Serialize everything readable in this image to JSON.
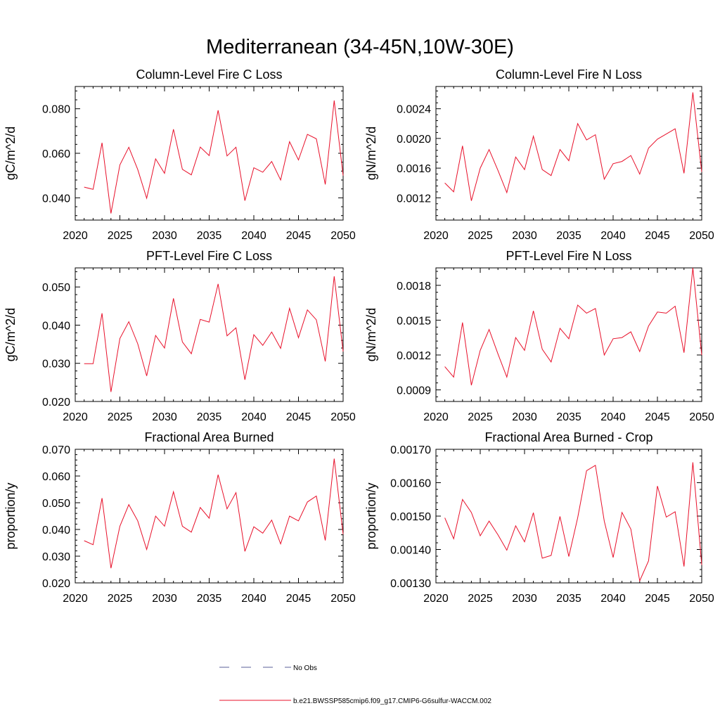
{
  "figure": {
    "title": "Mediterranean (34-45N,10W-30E)"
  },
  "colors": {
    "series": "#e8102a",
    "obs": "#5a5f9a",
    "axis": "#000000"
  },
  "legend": {
    "obs_label": "No Obs",
    "run_label": "b.e21.BWSSP585cmip6.f09_g17.CMIP6-G6sulfur-WACCM.002"
  },
  "chart_data": [
    {
      "type": "line",
      "title": "Column-Level Fire C Loss",
      "ylabel": "gC/m^2/d",
      "xlim": [
        2020,
        2050
      ],
      "ylim": [
        0.03,
        0.09
      ],
      "xticks": [
        2020,
        2025,
        2030,
        2035,
        2040,
        2045,
        2050
      ],
      "xtick_labels": [
        "2020",
        "2025",
        "2030",
        "2035",
        "2040",
        "2045",
        "2050"
      ],
      "yticks": [
        0.04,
        0.06,
        0.08
      ],
      "ytick_labels": [
        "0.040",
        "0.060",
        "0.080"
      ],
      "x": [
        2021,
        2022,
        2023,
        2024,
        2025,
        2026,
        2027,
        2028,
        2029,
        2030,
        2031,
        2032,
        2033,
        2034,
        2035,
        2036,
        2037,
        2038,
        2039,
        2040,
        2041,
        2042,
        2043,
        2044,
        2045,
        2046,
        2047,
        2048,
        2049,
        2050
      ],
      "series": [
        {
          "values": [
            0.0448,
            0.0438,
            0.0647,
            0.033,
            0.0548,
            0.0627,
            0.0527,
            0.0398,
            0.0575,
            0.051,
            0.0708,
            0.0528,
            0.0503,
            0.0628,
            0.059,
            0.0793,
            0.0588,
            0.0627,
            0.0387,
            0.0535,
            0.0515,
            0.0563,
            0.048,
            0.0652,
            0.057,
            0.0685,
            0.0665,
            0.046,
            0.0837,
            0.05
          ]
        }
      ]
    },
    {
      "type": "line",
      "title": "Column-Level Fire N Loss",
      "ylabel": "gN/m^2/d",
      "xlim": [
        2020,
        2050
      ],
      "ylim": [
        0.0009,
        0.0027
      ],
      "xticks": [
        2020,
        2025,
        2030,
        2035,
        2040,
        2045,
        2050
      ],
      "xtick_labels": [
        "2020",
        "2025",
        "2030",
        "2035",
        "2040",
        "2045",
        "2050"
      ],
      "yticks": [
        0.0012,
        0.0016,
        0.002,
        0.0024
      ],
      "ytick_labels": [
        "0.0012",
        "0.0016",
        "0.0020",
        "0.0024"
      ],
      "x": [
        2021,
        2022,
        2023,
        2024,
        2025,
        2026,
        2027,
        2028,
        2029,
        2030,
        2031,
        2032,
        2033,
        2034,
        2035,
        2036,
        2037,
        2038,
        2039,
        2040,
        2041,
        2042,
        2043,
        2044,
        2045,
        2046,
        2047,
        2048,
        2049,
        2050
      ],
      "series": [
        {
          "values": [
            0.0014,
            0.00128,
            0.0019,
            0.00116,
            0.0016,
            0.00185,
            0.00157,
            0.00127,
            0.00175,
            0.00158,
            0.00203,
            0.00158,
            0.0015,
            0.00185,
            0.0017,
            0.0022,
            0.00198,
            0.00205,
            0.00145,
            0.00166,
            0.00169,
            0.00177,
            0.00152,
            0.00187,
            0.00199,
            0.00206,
            0.00213,
            0.00153,
            0.00262,
            0.00155
          ]
        }
      ]
    },
    {
      "type": "line",
      "title": "PFT-Level Fire C Loss",
      "ylabel": "gC/m^2/d",
      "xlim": [
        2020,
        2050
      ],
      "ylim": [
        0.02,
        0.055
      ],
      "xticks": [
        2020,
        2025,
        2030,
        2035,
        2040,
        2045,
        2050
      ],
      "xtick_labels": [
        "2020",
        "2025",
        "2030",
        "2035",
        "2040",
        "2045",
        "2050"
      ],
      "yticks": [
        0.02,
        0.03,
        0.04,
        0.05
      ],
      "ytick_labels": [
        "0.020",
        "0.030",
        "0.040",
        "0.050"
      ],
      "x": [
        2021,
        2022,
        2023,
        2024,
        2025,
        2026,
        2027,
        2028,
        2029,
        2030,
        2031,
        2032,
        2033,
        2034,
        2035,
        2036,
        2037,
        2038,
        2039,
        2040,
        2041,
        2042,
        2043,
        2044,
        2045,
        2046,
        2047,
        2048,
        2049,
        2050
      ],
      "series": [
        {
          "values": [
            0.0299,
            0.0299,
            0.0431,
            0.0225,
            0.0365,
            0.0409,
            0.0351,
            0.0267,
            0.0373,
            0.034,
            0.047,
            0.0356,
            0.0325,
            0.0415,
            0.0408,
            0.0508,
            0.0372,
            0.0393,
            0.0257,
            0.0375,
            0.0347,
            0.0382,
            0.0339,
            0.0444,
            0.0367,
            0.044,
            0.0414,
            0.0305,
            0.0528,
            0.0331
          ]
        }
      ]
    },
    {
      "type": "line",
      "title": "PFT-Level Fire N Loss",
      "ylabel": "gN/m^2/d",
      "xlim": [
        2020,
        2050
      ],
      "ylim": [
        0.0008,
        0.00195
      ],
      "xticks": [
        2020,
        2025,
        2030,
        2035,
        2040,
        2045,
        2050
      ],
      "xtick_labels": [
        "2020",
        "2025",
        "2030",
        "2035",
        "2040",
        "2045",
        "2050"
      ],
      "yticks": [
        0.0009,
        0.0012,
        0.0015,
        0.0018
      ],
      "ytick_labels": [
        "0.0009",
        "0.0012",
        "0.0015",
        "0.0018"
      ],
      "x": [
        2021,
        2022,
        2023,
        2024,
        2025,
        2026,
        2027,
        2028,
        2029,
        2030,
        2031,
        2032,
        2033,
        2034,
        2035,
        2036,
        2037,
        2038,
        2039,
        2040,
        2041,
        2042,
        2043,
        2044,
        2045,
        2046,
        2047,
        2048,
        2049,
        2050
      ],
      "series": [
        {
          "values": [
            0.0011,
            0.00101,
            0.00148,
            0.00094,
            0.00124,
            0.00142,
            0.00121,
            0.00101,
            0.00135,
            0.00124,
            0.00158,
            0.00125,
            0.00114,
            0.00143,
            0.00134,
            0.00163,
            0.00156,
            0.0016,
            0.0012,
            0.00134,
            0.00135,
            0.0014,
            0.00123,
            0.00145,
            0.00157,
            0.00156,
            0.00162,
            0.00122,
            0.00195,
            0.0012
          ]
        }
      ]
    },
    {
      "type": "line",
      "title": "Fractional Area Burned",
      "ylabel": "proportion/y",
      "xlim": [
        2020,
        2050
      ],
      "ylim": [
        0.02,
        0.07
      ],
      "xticks": [
        2020,
        2025,
        2030,
        2035,
        2040,
        2045,
        2050
      ],
      "xtick_labels": [
        "2020",
        "2025",
        "2030",
        "2035",
        "2040",
        "2045",
        "2050"
      ],
      "yticks": [
        0.02,
        0.03,
        0.04,
        0.05,
        0.06,
        0.07
      ],
      "ytick_labels": [
        "0.020",
        "0.030",
        "0.040",
        "0.050",
        "0.060",
        "0.070"
      ],
      "x": [
        2021,
        2022,
        2023,
        2024,
        2025,
        2026,
        2027,
        2028,
        2029,
        2030,
        2031,
        2032,
        2033,
        2034,
        2035,
        2036,
        2037,
        2038,
        2039,
        2040,
        2041,
        2042,
        2043,
        2044,
        2045,
        2046,
        2047,
        2048,
        2049,
        2050
      ],
      "series": [
        {
          "values": [
            0.0358,
            0.0343,
            0.0517,
            0.0255,
            0.0412,
            0.0493,
            0.0432,
            0.0325,
            0.045,
            0.0412,
            0.0541,
            0.0412,
            0.039,
            0.0482,
            0.0442,
            0.0605,
            0.0477,
            0.0538,
            0.0318,
            0.041,
            0.0386,
            0.0435,
            0.0346,
            0.045,
            0.0432,
            0.0503,
            0.0525,
            0.0359,
            0.0665,
            0.0382
          ]
        }
      ]
    },
    {
      "type": "line",
      "title": "Fractional Area Burned - Crop",
      "ylabel": "proportion/y",
      "xlim": [
        2020,
        2050
      ],
      "ylim": [
        0.0013,
        0.0017
      ],
      "xticks": [
        2020,
        2025,
        2030,
        2035,
        2040,
        2045,
        2050
      ],
      "xtick_labels": [
        "2020",
        "2025",
        "2030",
        "2035",
        "2040",
        "2045",
        "2050"
      ],
      "yticks": [
        0.0013,
        0.0014,
        0.0015,
        0.0016,
        0.0017
      ],
      "ytick_labels": [
        "0.00130",
        "0.00140",
        "0.00150",
        "0.00160",
        "0.00170"
      ],
      "x": [
        2021,
        2022,
        2023,
        2024,
        2025,
        2026,
        2027,
        2028,
        2029,
        2030,
        2031,
        2032,
        2033,
        2034,
        2035,
        2036,
        2037,
        2038,
        2039,
        2040,
        2041,
        2042,
        2043,
        2044,
        2045,
        2046,
        2047,
        2048,
        2049,
        2050
      ],
      "series": [
        {
          "values": [
            0.001495,
            0.001432,
            0.00155,
            0.001511,
            0.001441,
            0.001485,
            0.001444,
            0.001398,
            0.001471,
            0.001423,
            0.00151,
            0.001374,
            0.001382,
            0.001499,
            0.001379,
            0.001495,
            0.001636,
            0.001652,
            0.001485,
            0.001376,
            0.001511,
            0.001461,
            0.001306,
            0.001366,
            0.00159,
            0.001497,
            0.001513,
            0.001349,
            0.001661,
            0.001354
          ]
        }
      ]
    }
  ]
}
